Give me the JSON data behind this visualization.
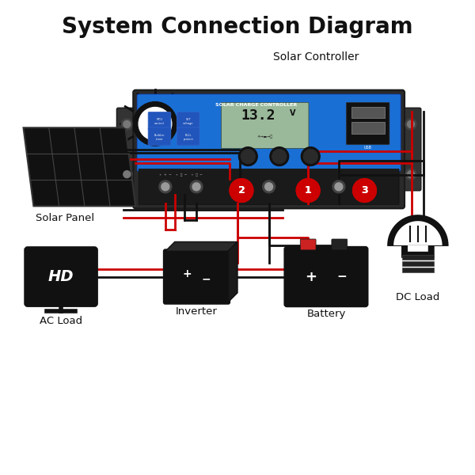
{
  "title": "System Connection Diagram",
  "title_fontsize": 20,
  "title_fontweight": "bold",
  "bg_color": "#ffffff",
  "controller_label": "Solar Controller",
  "solar_panel_label": "Solar Panel",
  "ac_load_label": "AC Load",
  "inverter_label": "Inverter",
  "battery_label": "Battery",
  "dc_load_label": "DC Load",
  "wire_red": "#cc0000",
  "wire_black": "#111111",
  "icon_color": "#111111",
  "num_color": "#cc0000",
  "blue_panel": "#1a6fd4",
  "dark_body": "#2a2a2a",
  "lcd_color": "#9ab89a"
}
